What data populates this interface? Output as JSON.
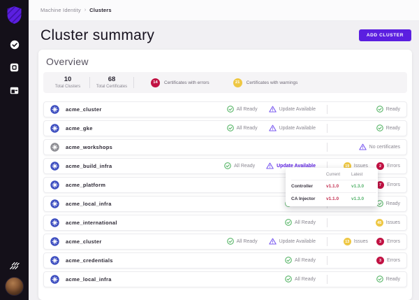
{
  "colors": {
    "accent_purple": "#5b1fe0",
    "badge_red": "#c11243",
    "badge_yellow": "#eec743",
    "status_green": "#57b567",
    "status_purple": "#7c5cf0",
    "k8s_blue": "#3d4ec0",
    "k8s_gray": "#8d8d93"
  },
  "sidebar": {
    "icons": [
      "shield-logo",
      "verified-check",
      "app-box",
      "wallet-card",
      "jetstack-slashes",
      "user-avatar"
    ]
  },
  "header": {
    "breadcrumb": {
      "parent": "Machine Identity",
      "separator": "›",
      "current": "Clusters"
    },
    "title": "Cluster summary",
    "add_button": "ADD CLUSTER"
  },
  "overview": {
    "heading": "Overview",
    "stats": [
      {
        "kind": "number",
        "value": "10",
        "label": "Total Clusters"
      },
      {
        "kind": "number",
        "value": "68",
        "label": "Total Certificates"
      },
      {
        "kind": "badge",
        "value": "14",
        "color": "#c11243",
        "label": "Certificates with errors"
      },
      {
        "kind": "badge",
        "value": "21",
        "color": "#eec743",
        "label": "Certificates with warnings"
      }
    ]
  },
  "labels": {
    "all_ready": "All Ready",
    "update_available": "Update Available",
    "ready": "Ready",
    "no_certificates": "No certificates",
    "issues": "Issues",
    "errors": "Errors"
  },
  "clusters": [
    {
      "name": "acme_cluster",
      "icon": "blue",
      "all_ready": true,
      "update_available": true,
      "update_highlight": false,
      "right": [
        {
          "kind": "ready"
        }
      ]
    },
    {
      "name": "acme_gke",
      "icon": "blue",
      "all_ready": true,
      "update_available": true,
      "update_highlight": false,
      "right": [
        {
          "kind": "ready"
        }
      ]
    },
    {
      "name": "acme_workshops",
      "icon": "gray",
      "all_ready": false,
      "update_available": false,
      "update_highlight": false,
      "right": [
        {
          "kind": "no_certificates"
        }
      ]
    },
    {
      "name": "acme_build_infra",
      "icon": "blue",
      "all_ready": true,
      "update_available": true,
      "update_highlight": true,
      "right": [
        {
          "kind": "issues",
          "value": "19"
        },
        {
          "kind": "errors",
          "value": "2"
        }
      ]
    },
    {
      "name": "acme_platform",
      "icon": "blue",
      "all_ready": false,
      "update_available": false,
      "update_highlight": false,
      "right": [
        {
          "kind": "errors",
          "value": "7"
        }
      ]
    },
    {
      "name": "acme_local_infra",
      "icon": "blue",
      "all_ready": true,
      "update_available": false,
      "update_highlight": false,
      "right": [
        {
          "kind": "ready"
        }
      ]
    },
    {
      "name": "acme_international",
      "icon": "blue",
      "all_ready": true,
      "update_available": false,
      "update_highlight": false,
      "right": [
        {
          "kind": "issues",
          "value": "45"
        }
      ]
    },
    {
      "name": "acme_cluster",
      "icon": "blue",
      "all_ready": true,
      "update_available": true,
      "update_highlight": false,
      "right": [
        {
          "kind": "issues",
          "value": "13"
        },
        {
          "kind": "errors",
          "value": "3"
        }
      ]
    },
    {
      "name": "acme_credentials",
      "icon": "blue",
      "all_ready": true,
      "update_available": false,
      "update_highlight": false,
      "right": [
        {
          "kind": "errors",
          "value": "3"
        }
      ]
    },
    {
      "name": "acme_local_infra",
      "icon": "blue",
      "all_ready": true,
      "update_available": false,
      "update_highlight": false,
      "right": [
        {
          "kind": "ready"
        }
      ]
    }
  ],
  "tooltip": {
    "columns": {
      "current": "Current",
      "latest": "Latest"
    },
    "rows": [
      {
        "name": "Controller",
        "current": "v1.1.0",
        "latest": "v1.3.0"
      },
      {
        "name": "CA Injector",
        "current": "v1.1.0",
        "latest": "v1.3.0"
      }
    ]
  }
}
